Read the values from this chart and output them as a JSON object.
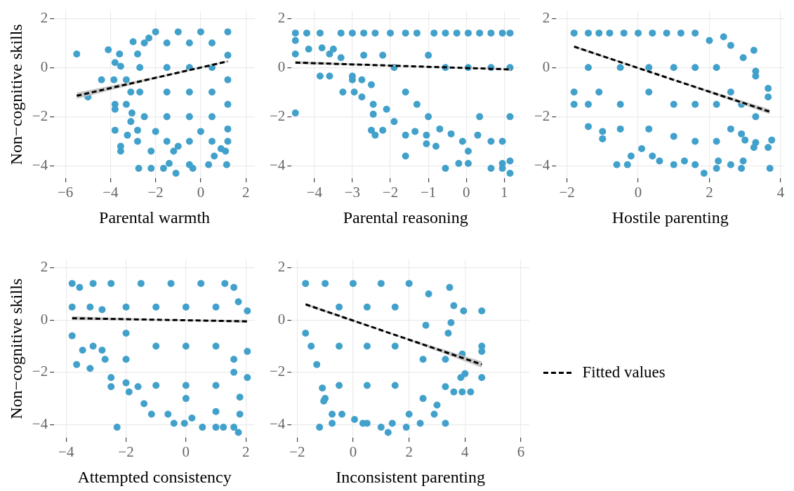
{
  "chart_data": [
    {
      "type": "scatter",
      "xlabel": "Parental warmth",
      "ylabel": "Non−cognitive skills",
      "xlim": [
        -6.5,
        2.4
      ],
      "ylim": [
        -4.5,
        2.3
      ],
      "xticks": [
        -6,
        -4,
        -2,
        0,
        2
      ],
      "yticks": [
        -4,
        -2,
        0,
        2
      ],
      "grid": true,
      "series": [
        {
          "type": "scatter",
          "marker": "circle",
          "color": "#42a1cb",
          "x": [
            -5.5,
            -5.0,
            -4.1,
            -3.8,
            -3.6,
            -3.55,
            -4.4,
            -3.85,
            -3.8,
            -3.8,
            -3.8,
            -3.55,
            -3.55,
            -3.25,
            -3.3,
            -3.3,
            -3.1,
            -3.05,
            -3.1,
            -2.8,
            -2.8,
            -2.75,
            -2.2,
            -1.65,
            -1.1,
            -0.35,
            -1.4,
            -0.5,
            0.35,
            1.15,
            0.6,
            1.1,
            -2.2,
            -1.2,
            -2.8,
            -3.0,
            -2.3,
            -2.0,
            -1.0,
            0,
            1.2,
            1.2,
            1.2,
            1.2,
            1.2,
            1.2,
            0.5,
            -0.5,
            -1.5,
            -2.5,
            -2.7,
            -2.7,
            -2.5,
            -1.5,
            -1.5,
            -1.5,
            -1.5,
            -0.5,
            -0.5,
            -0.5,
            -0.5,
            0.5,
            0.5,
            0.5,
            0.5,
            -2.0,
            0,
            -1.0,
            0.9
          ],
          "values": [
            0.55,
            -1.2,
            0.72,
            0.2,
            0.55,
            0.05,
            -0.5,
            -0.5,
            -1.5,
            -1.7,
            -2.55,
            -3.2,
            -3.4,
            -2.75,
            -0.5,
            -1.5,
            -1.0,
            -1.85,
            -2.2,
            -2.55,
            -3.0,
            -4.1,
            -4.1,
            -4.1,
            -4.3,
            -4.1,
            -3.9,
            -3.95,
            -3.95,
            -3.95,
            -3.6,
            -3.4,
            -3.4,
            -3.4,
            0.55,
            1.05,
            1.2,
            1.45,
            1.45,
            1.45,
            1.45,
            0.5,
            -0.5,
            -1.5,
            -2.5,
            -3.0,
            -3.0,
            -3.0,
            -3.0,
            -2.0,
            -1.0,
            0,
            1.0,
            1.0,
            0,
            -1.0,
            -2.0,
            1.0,
            0,
            -1.0,
            -2.0,
            1.0,
            0,
            -1.0,
            -2.0,
            -2.6,
            -2.6,
            -3.2,
            -3.3
          ]
        },
        {
          "type": "line",
          "line_style": "dashed",
          "color": "#000000",
          "x": [
            -5.5,
            -2.15,
            1.2
          ],
          "values": [
            -1.15,
            -0.45,
            0.25
          ],
          "lower": [
            -1.28,
            -0.49,
            0.22
          ],
          "upper": [
            -1.02,
            -0.41,
            0.28
          ]
        }
      ]
    },
    {
      "type": "scatter",
      "xlabel": "Parental reasoning",
      "xlim": [
        -4.6,
        1.4
      ],
      "ylim": [
        -4.5,
        2.3
      ],
      "xticks": [
        -4,
        -3,
        -2,
        -1,
        0,
        1
      ],
      "yticks": [
        -4,
        -2,
        0,
        2
      ],
      "grid": true,
      "series": [
        {
          "type": "scatter",
          "marker": "circle",
          "color": "#42a1cb",
          "x": [
            -4.5,
            -4.5,
            -4.5,
            -4.5,
            -4.2,
            -4.15,
            -3.85,
            -3.8,
            -3.85,
            -3.6,
            -3.6,
            -3.5,
            -3.3,
            -3.3,
            -3.25,
            -3.0,
            -3.0,
            -3.0,
            -2.95,
            -2.75,
            -2.75,
            -2.5,
            -2.45,
            -2.45,
            -2.5,
            -2.4,
            -2.2,
            -2.1,
            -1.9,
            -1.6,
            -1.6,
            -1.35,
            -1.05,
            -1.05,
            -0.8,
            -0.55,
            -0.2,
            0.05,
            0.05,
            0.3,
            0.65,
            0.95,
            0.95,
            1.15,
            1.15,
            1.15,
            1.15,
            1.15,
            0.95,
            0.65,
            0.35,
            0.05,
            -0.25,
            -0.55,
            -0.85,
            -1.3,
            -1.6,
            -2.0,
            -2.4,
            -2.7,
            -1.9,
            -1.6,
            -1.3,
            -1.0,
            -0.7,
            -0.4,
            -0.1,
            0.35,
            0.65,
            0.95,
            0.65,
            0.05,
            -0.55,
            -1.0,
            -2.2,
            -2.7
          ],
          "values": [
            1.4,
            1.1,
            0.55,
            -1.85,
            1.4,
            0.75,
            1.4,
            0.8,
            -0.35,
            -0.35,
            0.55,
            0.75,
            1.4,
            0.4,
            -1.0,
            1.4,
            -0.35,
            -0.5,
            -1.0,
            -1.2,
            -0.5,
            -0.7,
            -1.5,
            -1.9,
            -2.55,
            -2.75,
            -2.55,
            -1.7,
            -2.2,
            -3.6,
            -2.75,
            -2.6,
            -2.75,
            -3.1,
            -3.2,
            -4.1,
            -3.9,
            -3.9,
            -3.4,
            -2.75,
            -4.1,
            -3.9,
            -4.1,
            -4.3,
            -3.8,
            -2.0,
            0,
            1.4,
            1.4,
            1.4,
            1.4,
            1.4,
            1.4,
            1.4,
            1.4,
            1.4,
            1.4,
            1.4,
            1.4,
            1.4,
            0,
            -1.0,
            -1.5,
            -2.0,
            -2.5,
            -2.7,
            -3.0,
            -2.0,
            -3.0,
            -3.0,
            0,
            0,
            0,
            0.5,
            0.5,
            0.5
          ]
        },
        {
          "type": "line",
          "line_style": "dashed",
          "color": "#000000",
          "x": [
            -4.5,
            -1.65,
            1.2
          ],
          "values": [
            0.2,
            0.06,
            -0.08
          ],
          "lower": [
            0.14,
            0.04,
            -0.1
          ],
          "upper": [
            0.26,
            0.08,
            -0.06
          ]
        }
      ]
    },
    {
      "type": "scatter",
      "xlabel": "Hostile parenting",
      "xlim": [
        -2.3,
        4.1
      ],
      "ylim": [
        -4.5,
        2.3
      ],
      "xticks": [
        -2,
        0,
        2,
        4
      ],
      "yticks": [
        -4,
        -2,
        0,
        2
      ],
      "grid": true,
      "series": [
        {
          "type": "scatter",
          "marker": "circle",
          "color": "#42a1cb",
          "x": [
            -1.8,
            -1.8,
            -1.8,
            -1.4,
            -1.4,
            -1.4,
            -1.0,
            -1.0,
            -1.1,
            -0.6,
            -0.3,
            -0.2,
            0.1,
            0.4,
            0.6,
            1.0,
            1.3,
            1.6,
            1.85,
            2.2,
            2.25,
            2.6,
            2.9,
            2.95,
            3.0,
            3.25,
            3.3,
            3.65,
            3.7,
            3.75,
            3.65,
            3.65,
            3.3,
            3.3,
            3.25,
            2.95,
            2.6,
            2.4,
            2.0,
            1.6,
            1.2,
            0.8,
            0.4,
            0,
            -0.4,
            -0.8,
            -1.4,
            -1.1,
            -0.5,
            -0.5,
            -0.5,
            0.3,
            0.3,
            0.3,
            1.0,
            1.0,
            1.0,
            1.6,
            1.6,
            1.6,
            2.2,
            2.2,
            2.2,
            2.6,
            2.6,
            2.9,
            2.9,
            3.3
          ],
          "values": [
            1.4,
            -1.0,
            -1.5,
            1.4,
            -1.5,
            -2.4,
            -2.6,
            -2.9,
            1.4,
            -3.95,
            -3.95,
            -3.6,
            -3.3,
            -3.6,
            -3.8,
            -3.95,
            -3.8,
            -3.95,
            -4.3,
            -4.1,
            -3.8,
            -3.95,
            -4.1,
            -3.8,
            -2.95,
            -3.25,
            -3.05,
            -3.25,
            -4.1,
            -2.95,
            -1.2,
            -0.85,
            -0.15,
            -0.35,
            0.7,
            0.4,
            0.9,
            1.25,
            1.1,
            1.4,
            1.4,
            1.4,
            1.4,
            1.4,
            1.4,
            1.4,
            0,
            -1.0,
            0,
            -1.5,
            -2.5,
            0,
            -1.0,
            -2.5,
            0,
            -1.5,
            -2.8,
            0,
            -1.5,
            -3.0,
            0,
            -1.5,
            -3.0,
            -1.0,
            -2.5,
            -1.5,
            -2.7,
            -2.0
          ]
        },
        {
          "type": "line",
          "line_style": "dashed",
          "color": "#000000",
          "x": [
            -1.8,
            0.95,
            3.7
          ],
          "values": [
            0.85,
            -0.48,
            -1.8
          ],
          "lower": [
            0.8,
            -0.5,
            -1.9
          ],
          "upper": [
            0.9,
            -0.46,
            -1.7
          ]
        }
      ]
    },
    {
      "type": "scatter",
      "xlabel": "Attempted consistency",
      "ylabel": "Non−cognitive skills",
      "xlim": [
        -4.4,
        2.3
      ],
      "ylim": [
        -4.5,
        2.3
      ],
      "xticks": [
        -4,
        -2,
        0,
        2
      ],
      "yticks": [
        -4,
        -2,
        0,
        2
      ],
      "grid": true,
      "series": [
        {
          "type": "scatter",
          "marker": "circle",
          "color": "#42a1cb",
          "x": [
            -3.8,
            -3.8,
            -3.8,
            -3.65,
            -3.55,
            -3.45,
            -3.2,
            -3.1,
            -3.1,
            -2.8,
            -2.7,
            -2.5,
            -2.5,
            -2.3,
            -2.0,
            -1.9,
            -1.6,
            -1.4,
            -1.15,
            -0.6,
            -0.4,
            -0.05,
            0.2,
            0.55,
            1.0,
            1.25,
            1.6,
            1.75,
            1.8,
            1.8,
            2.05,
            2.05,
            2.05,
            1.75,
            1.6,
            1.3,
            0.5,
            -0.5,
            -1.5,
            -2.5,
            -2.0,
            -2.0,
            -2.0,
            -1.0,
            -1.0,
            -1.0,
            0,
            0,
            0,
            0,
            1.0,
            1.0,
            1.0,
            1.0,
            1.6,
            1.6,
            -2.8,
            -3.2
          ],
          "values": [
            1.4,
            0.5,
            -0.6,
            -1.7,
            1.25,
            -1.15,
            -1.85,
            1.4,
            -1.0,
            -1.15,
            -1.5,
            -2.2,
            -2.55,
            -4.1,
            -2.4,
            -2.75,
            -2.55,
            -3.2,
            -3.6,
            -3.6,
            -3.95,
            -3.95,
            -3.75,
            -4.1,
            -4.1,
            -4.1,
            -4.1,
            -4.3,
            -3.6,
            -2.95,
            -2.2,
            -1.2,
            0.35,
            0.7,
            1.25,
            1.4,
            1.4,
            1.4,
            1.4,
            1.4,
            0.5,
            -0.5,
            -1.5,
            0.5,
            -1.0,
            -2.5,
            0.5,
            -1.0,
            -2.5,
            -3.0,
            0.5,
            -1.0,
            -2.5,
            -3.5,
            -1.5,
            -2.0,
            0.4,
            0.5
          ]
        },
        {
          "type": "line",
          "line_style": "dashed",
          "color": "#000000",
          "x": [
            -3.8,
            -0.85,
            2.05
          ],
          "values": [
            0.07,
            0.01,
            -0.05
          ],
          "lower": [
            0.0,
            -0.01,
            -0.1
          ],
          "upper": [
            0.14,
            0.03,
            0.0
          ]
        }
      ]
    },
    {
      "type": "scatter",
      "xlabel": "Inconsistent parenting",
      "xlim": [
        -2.2,
        6.3
      ],
      "ylim": [
        -4.5,
        2.3
      ],
      "xticks": [
        -2,
        0,
        2,
        4,
        6
      ],
      "yticks": [
        -4,
        -2,
        0,
        2
      ],
      "grid": true,
      "legend": "right",
      "series": [
        {
          "type": "scatter",
          "marker": "circle",
          "color": "#42a1cb",
          "x": [
            -1.7,
            -1.7,
            -1.5,
            -1.3,
            -1.1,
            -1.05,
            -1.2,
            -0.75,
            -0.75,
            -0.4,
            0.05,
            0.35,
            0.5,
            1.0,
            1.25,
            1.4,
            1.9,
            2.4,
            2.9,
            3.3,
            3.0,
            3.3,
            3.6,
            3.9,
            4.2,
            3.85,
            4.0,
            4.6,
            4.6,
            4.6,
            4.6,
            3.95,
            3.6,
            3.45,
            2.7,
            2.0,
            1.0,
            0,
            -1.0,
            3.4,
            3.3,
            3.9,
            2.6,
            2.5,
            2.5,
            1.5,
            1.5,
            1.5,
            0.5,
            0.5,
            0.5,
            -0.5,
            -0.5,
            -0.5,
            -1.0,
            2.0,
            3.5
          ],
          "values": [
            1.4,
            -0.5,
            -1.0,
            -1.7,
            -2.6,
            -3.1,
            -4.1,
            -3.6,
            -3.95,
            -3.6,
            -3.8,
            -3.95,
            -3.95,
            -4.1,
            -4.3,
            -3.95,
            -4.1,
            -3.95,
            -3.6,
            -3.95,
            -3.25,
            -2.55,
            -2.75,
            -2.75,
            -2.75,
            -2.2,
            -2.05,
            -2.2,
            -1.2,
            -1.0,
            0.35,
            0.35,
            0.55,
            1.25,
            1.0,
            1.4,
            1.4,
            1.4,
            1.4,
            -0.5,
            -1.5,
            -1.3,
            -0.2,
            -1.5,
            -3.0,
            0.5,
            -1.0,
            -2.5,
            0.5,
            -1.0,
            -2.5,
            0.5,
            -1.0,
            -2.5,
            -3.0,
            -3.6,
            -0.1
          ]
        },
        {
          "type": "line",
          "name": "Fitted values",
          "line_style": "dashed",
          "color": "#000000",
          "x": [
            -1.7,
            1.45,
            4.6
          ],
          "values": [
            0.6,
            -0.55,
            -1.7
          ],
          "lower": [
            0.55,
            -0.57,
            -1.82
          ],
          "upper": [
            0.65,
            -0.53,
            -1.58
          ]
        }
      ]
    }
  ]
}
